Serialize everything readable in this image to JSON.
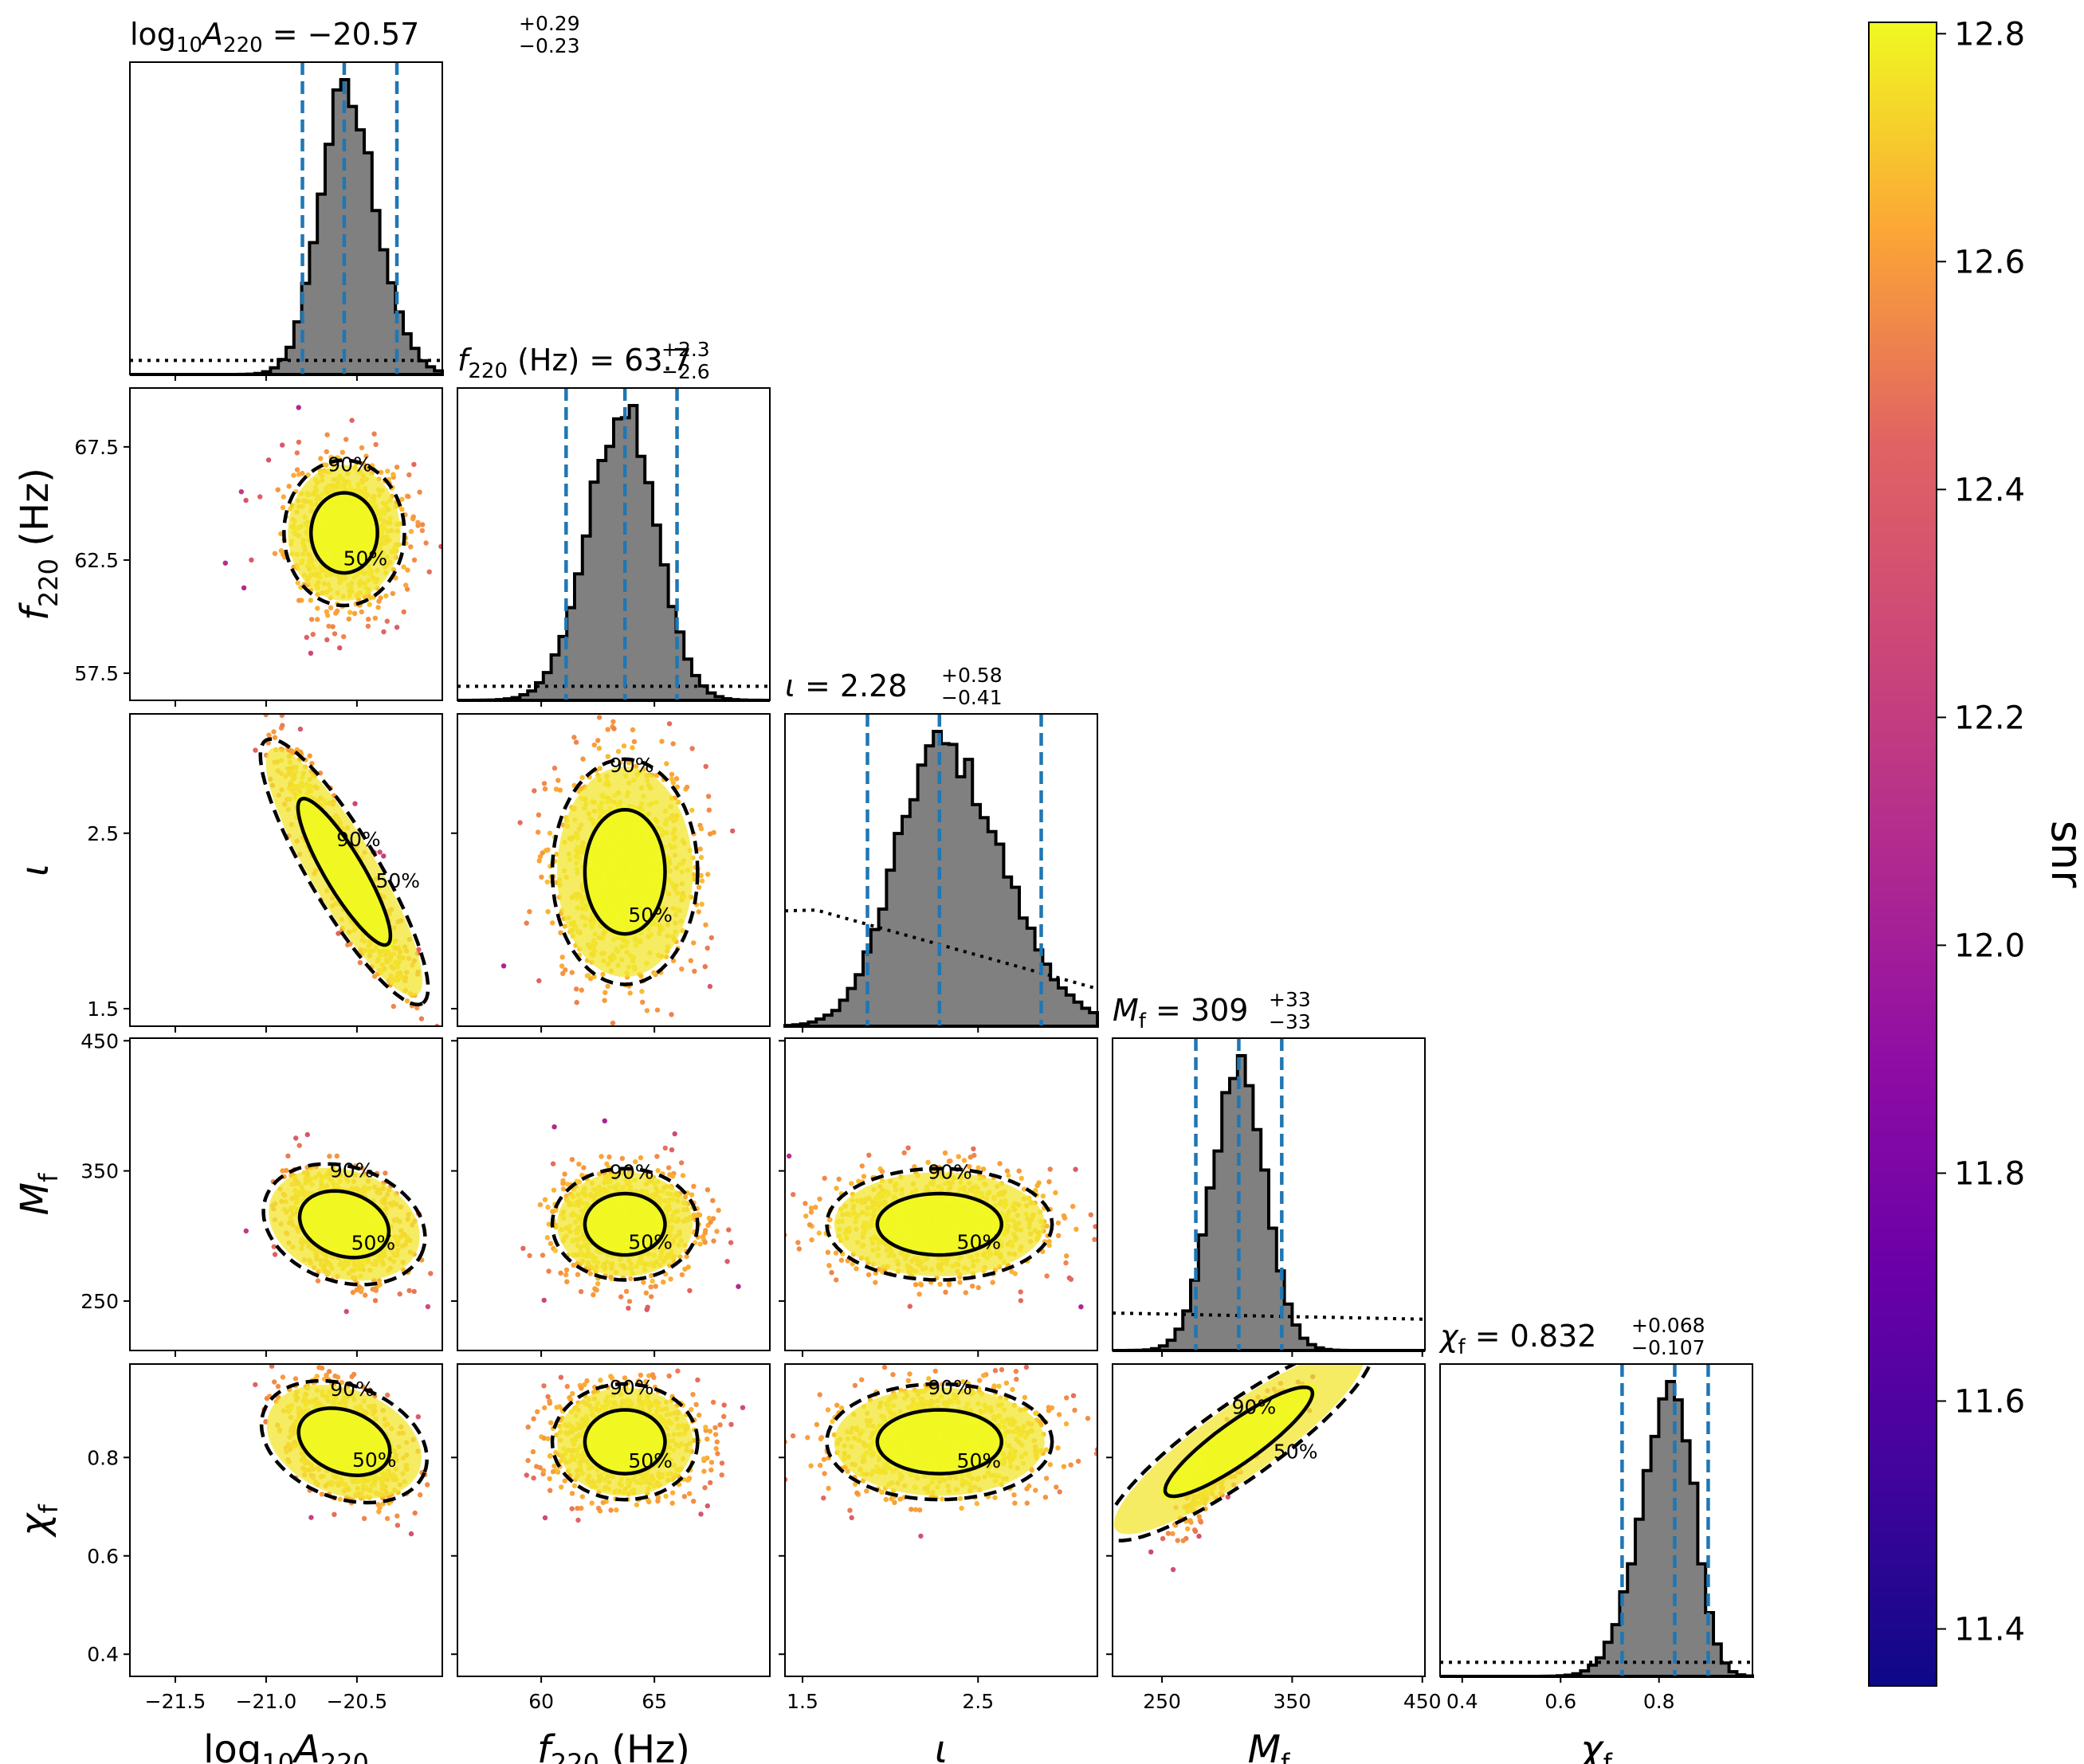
{
  "chart_data": {
    "type": "scatter",
    "subtype": "corner-plot",
    "parameters": [
      {
        "key": "logA",
        "label_base": "log",
        "label_sub1": "10",
        "label_main": "A",
        "label_sub2": "220",
        "unit": "",
        "tick_labels": [
          "−21.5",
          "−21.0",
          "−20.5"
        ],
        "ticks": [
          -21.5,
          -21.0,
          -20.5
        ],
        "range": [
          -21.75,
          -20.03
        ],
        "summary": {
          "prefix": "log",
          "prefix_sub": "10",
          "sym": "A",
          "sym_sub": "220",
          "unit": "",
          "median": "−20.57",
          "plus": "+0.29",
          "minus": "−0.23"
        },
        "median": -20.57,
        "lo90": -20.8,
        "hi90": -20.28,
        "sd": 0.155
      },
      {
        "key": "f220",
        "label_main": "f",
        "label_sub2": "220",
        "unit": " (Hz)",
        "tick_labels": [
          "57.5",
          "62.5",
          "67.5"
        ],
        "ticks": [
          57.5,
          62.5,
          67.5
        ],
        "range": [
          56.3,
          70.1
        ],
        "x_tick_labels": [
          "60",
          "65"
        ],
        "x_ticks": [
          60,
          65
        ],
        "summary": {
          "sym": "f",
          "sym_sub": "220",
          "unit": " (Hz)",
          "median": "63.7",
          "plus": "+2.3",
          "minus": "−2.6"
        },
        "median": 63.7,
        "lo90": 61.1,
        "hi90": 66.0,
        "sd": 1.5
      },
      {
        "key": "iota",
        "label_main": "ι",
        "unit": "",
        "tick_labels": [
          "1.5",
          "2.5"
        ],
        "ticks": [
          1.5,
          2.5
        ],
        "range": [
          1.4,
          3.18
        ],
        "summary": {
          "sym": "ι",
          "median": "2.28",
          "plus": "+0.58",
          "minus": "−0.41"
        },
        "median": 2.28,
        "lo90": 1.87,
        "hi90": 2.86,
        "sd": 0.3
      },
      {
        "key": "Mf",
        "label_main": "M",
        "label_sub2": "f",
        "unit": "",
        "tick_labels": [
          "250",
          "350",
          "450"
        ],
        "ticks": [
          250,
          350,
          450
        ],
        "range": [
          212,
          452
        ],
        "summary": {
          "sym": "M",
          "sym_sub": "f",
          "median": "309",
          "plus": "+33",
          "minus": "−33"
        },
        "median": 309,
        "lo90": 276,
        "hi90": 342,
        "sd": 20
      },
      {
        "key": "chif",
        "label_main": "χ",
        "label_sub2": "f",
        "unit": "",
        "tick_labels": [
          "0.4",
          "0.6",
          "0.8"
        ],
        "ticks": [
          0.4,
          0.6,
          0.8
        ],
        "range": [
          0.355,
          0.99
        ],
        "summary": {
          "sym": "χ",
          "sym_sub": "f",
          "median": "0.832",
          "plus": "+0.068",
          "minus": "−0.107"
        },
        "median": 0.832,
        "lo90": 0.725,
        "hi90": 0.9,
        "sd": 0.055
      }
    ],
    "correlations": [
      [
        1,
        0,
        0,
        0,
        0
      ],
      [
        0,
        1,
        0,
        0,
        0
      ],
      [
        -0.9,
        0,
        1,
        0,
        0
      ],
      [
        -0.35,
        0,
        0,
        1,
        0
      ],
      [
        -0.4,
        0,
        0,
        0.93,
        1
      ]
    ],
    "contour_labels": [
      "50%",
      "90%"
    ],
    "colorbar": {
      "label": "snr",
      "min": 11.35,
      "max": 12.81,
      "tick_labels": [
        "11.4",
        "11.6",
        "11.8",
        "12.0",
        "12.2",
        "12.4",
        "12.6",
        "12.8"
      ],
      "ticks": [
        11.4,
        11.6,
        11.8,
        12.0,
        12.2,
        12.4,
        12.6,
        12.8
      ],
      "colormap": "plasma"
    },
    "colors": {
      "histogram_fill": "#808080",
      "quantile_lines": "#1f77b4",
      "contours": "#000000",
      "prior": "#000000"
    }
  }
}
